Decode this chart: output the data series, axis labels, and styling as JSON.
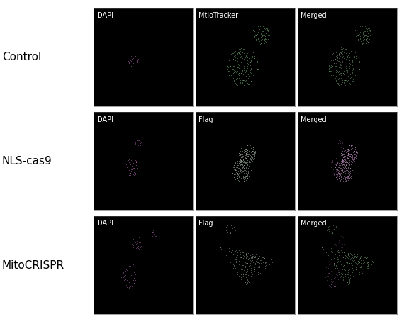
{
  "rows": [
    "Control",
    "NLS-cas9",
    "MitoCRISPR"
  ],
  "col_labels_row0": [
    "DAPI",
    "MtioTracker",
    "Merged"
  ],
  "col_labels_row1": [
    "DAPI",
    "Flag",
    "Merged"
  ],
  "col_labels_row2": [
    "DAPI",
    "Flag",
    "Merged"
  ],
  "panel_bg": "#000000",
  "outer_bg": "#ffffff",
  "text_color": "#ffffff",
  "row_label_color": "#000000",
  "label_fontsize": 7,
  "row_label_fontsize": 11,
  "fig_width": 5.63,
  "fig_height": 4.5,
  "dpi": 100,
  "dapi_color": "#cc77cc",
  "mito_color": "#77bb77",
  "flag_color": "#99aa99",
  "merged_green": "#77aa77",
  "merged_purple": "#bb88bb"
}
